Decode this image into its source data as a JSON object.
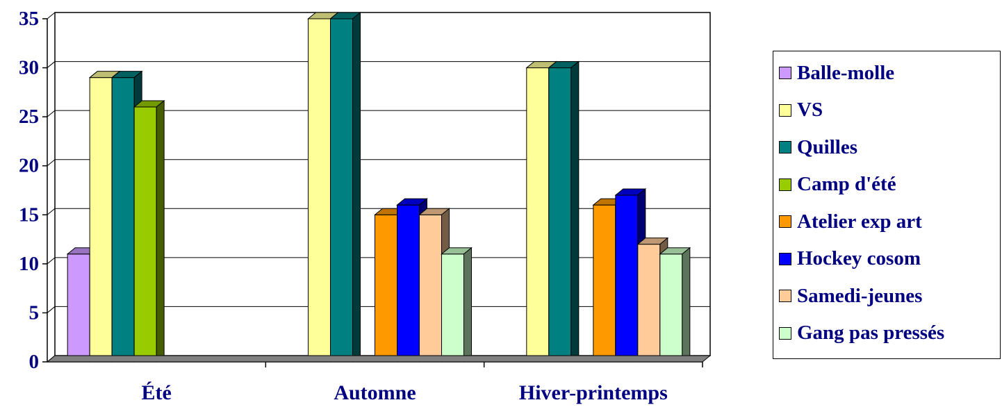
{
  "chart_data": {
    "type": "bar",
    "categories": [
      "Été",
      "Automne",
      "Hiver-printemps"
    ],
    "series": [
      {
        "name": "Balle-molle",
        "values": [
          11,
          0,
          0
        ],
        "color": "#CC99FF"
      },
      {
        "name": "VS",
        "values": [
          29,
          35,
          30
        ],
        "color": "#FFFF99"
      },
      {
        "name": "Quilles",
        "values": [
          29,
          35,
          30
        ],
        "color": "#008080"
      },
      {
        "name": "Camp d'été",
        "values": [
          26,
          0,
          0
        ],
        "color": "#99CC00"
      },
      {
        "name": "Atelier exp art",
        "values": [
          0,
          15,
          16
        ],
        "color": "#FF9900"
      },
      {
        "name": "Hockey cosom",
        "values": [
          0,
          16,
          17
        ],
        "color": "#0000FF"
      },
      {
        "name": "Samedi-jeunes",
        "values": [
          0,
          15,
          12
        ],
        "color": "#FFCC99"
      },
      {
        "name": "Gang pas pressés",
        "values": [
          0,
          11,
          11
        ],
        "color": "#CCFFCC"
      }
    ],
    "yticks": [
      0,
      5,
      10,
      15,
      20,
      25,
      30,
      35
    ],
    "ylim": [
      0,
      35
    ],
    "grid": true,
    "legend_position": "right",
    "three_d": true
  }
}
